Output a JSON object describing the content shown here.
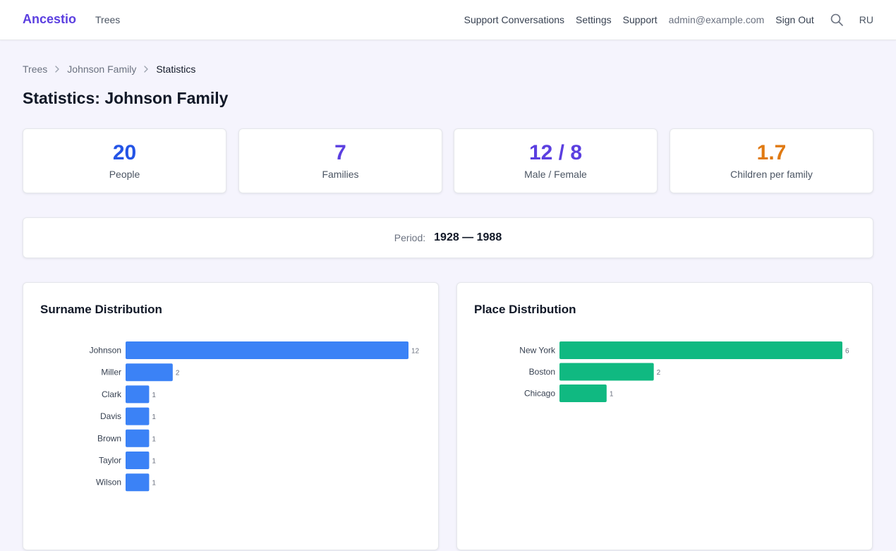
{
  "nav": {
    "brand": "Ancestio",
    "trees": "Trees",
    "support_conversations": "Support Conversations",
    "settings": "Settings",
    "support": "Support",
    "email": "admin@example.com",
    "sign_out": "Sign Out",
    "language": "RU",
    "search_icon": "search-icon"
  },
  "breadcrumb": {
    "items": [
      "Trees",
      "Johnson Family",
      "Statistics"
    ]
  },
  "page_title": "Statistics: Johnson Family",
  "stats": [
    {
      "value": "20",
      "label": "People",
      "color": "#2454e6"
    },
    {
      "value": "7",
      "label": "Families",
      "color": "#5b3fe0"
    },
    {
      "value": "12 / 8",
      "label": "Male / Female",
      "color": "#5b3fe0"
    },
    {
      "value": "1.7",
      "label": "Children per family",
      "color": "#e07a12"
    }
  ],
  "period": {
    "label": "Period:",
    "value": "1928 — 1988"
  },
  "chart_data": [
    {
      "type": "bar",
      "orientation": "horizontal",
      "title": "Surname Distribution",
      "categories": [
        "Johnson",
        "Miller",
        "Clark",
        "Davis",
        "Brown",
        "Taylor",
        "Wilson"
      ],
      "values": [
        12,
        2,
        1,
        1,
        1,
        1,
        1
      ],
      "color": "#3b82f6"
    },
    {
      "type": "bar",
      "orientation": "horizontal",
      "title": "Place Distribution",
      "categories": [
        "New York",
        "Boston",
        "Chicago"
      ],
      "values": [
        6,
        2,
        1
      ],
      "color": "#10b981"
    }
  ]
}
